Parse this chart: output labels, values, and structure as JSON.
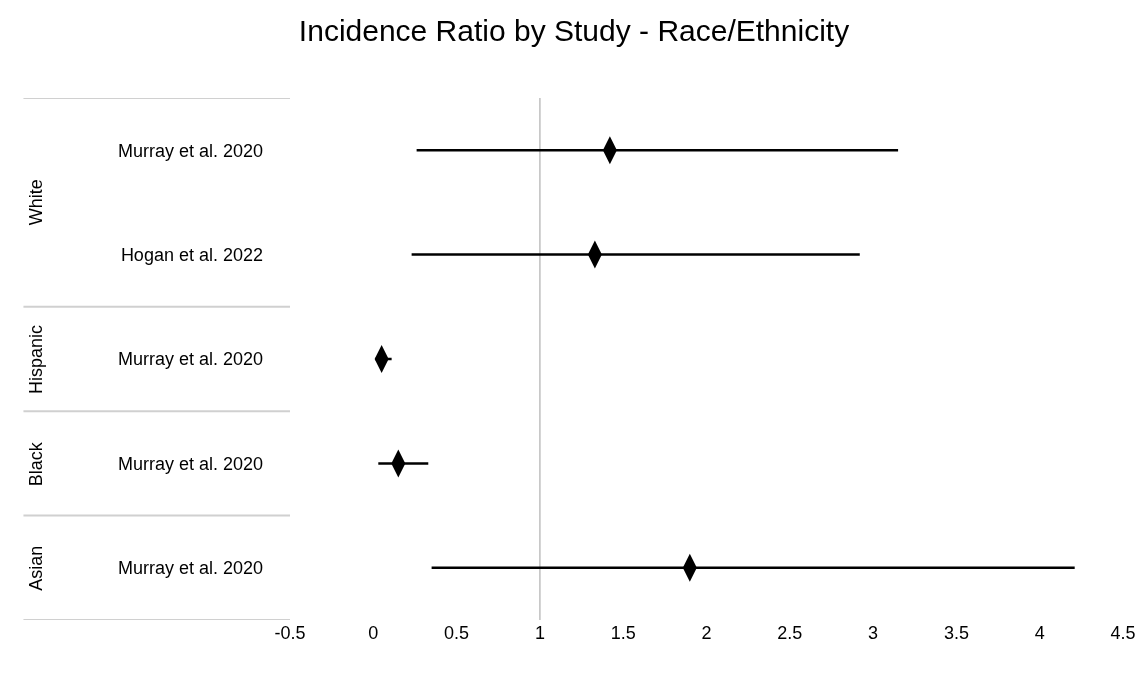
{
  "chart_data": {
    "type": "scatter",
    "orientation": "horizontal",
    "title": "Incidence Ratio by Study - Race/Ethnicity",
    "categories": [
      "Murray et al. 2020",
      "Hogan et al. 2022",
      "Murray et al. 2020",
      "Murray et al. 2020",
      "Murray et al. 2020"
    ],
    "values": [
      1.42,
      1.33,
      0.05,
      0.15,
      1.9
    ],
    "errors": [
      [
        0.26,
        3.15
      ],
      [
        0.23,
        2.92
      ],
      [
        0.01,
        0.11
      ],
      [
        0.03,
        0.33
      ],
      [
        0.35,
        4.21
      ]
    ],
    "color": "#000000",
    "marker": "diamond",
    "xlim": [
      -0.5,
      4.5
    ],
    "xticks": [
      -0.5,
      0,
      0.5,
      1,
      1.5,
      2,
      2.5,
      3,
      3.5,
      4,
      4.5
    ],
    "ref_lines": [
      {
        "axis": "x",
        "value": 1,
        "color": "#bfbfbf"
      }
    ],
    "annotations": [
      "White",
      "Hispanic",
      "Black",
      "Asian"
    ],
    "grid": false,
    "legend": false
  }
}
